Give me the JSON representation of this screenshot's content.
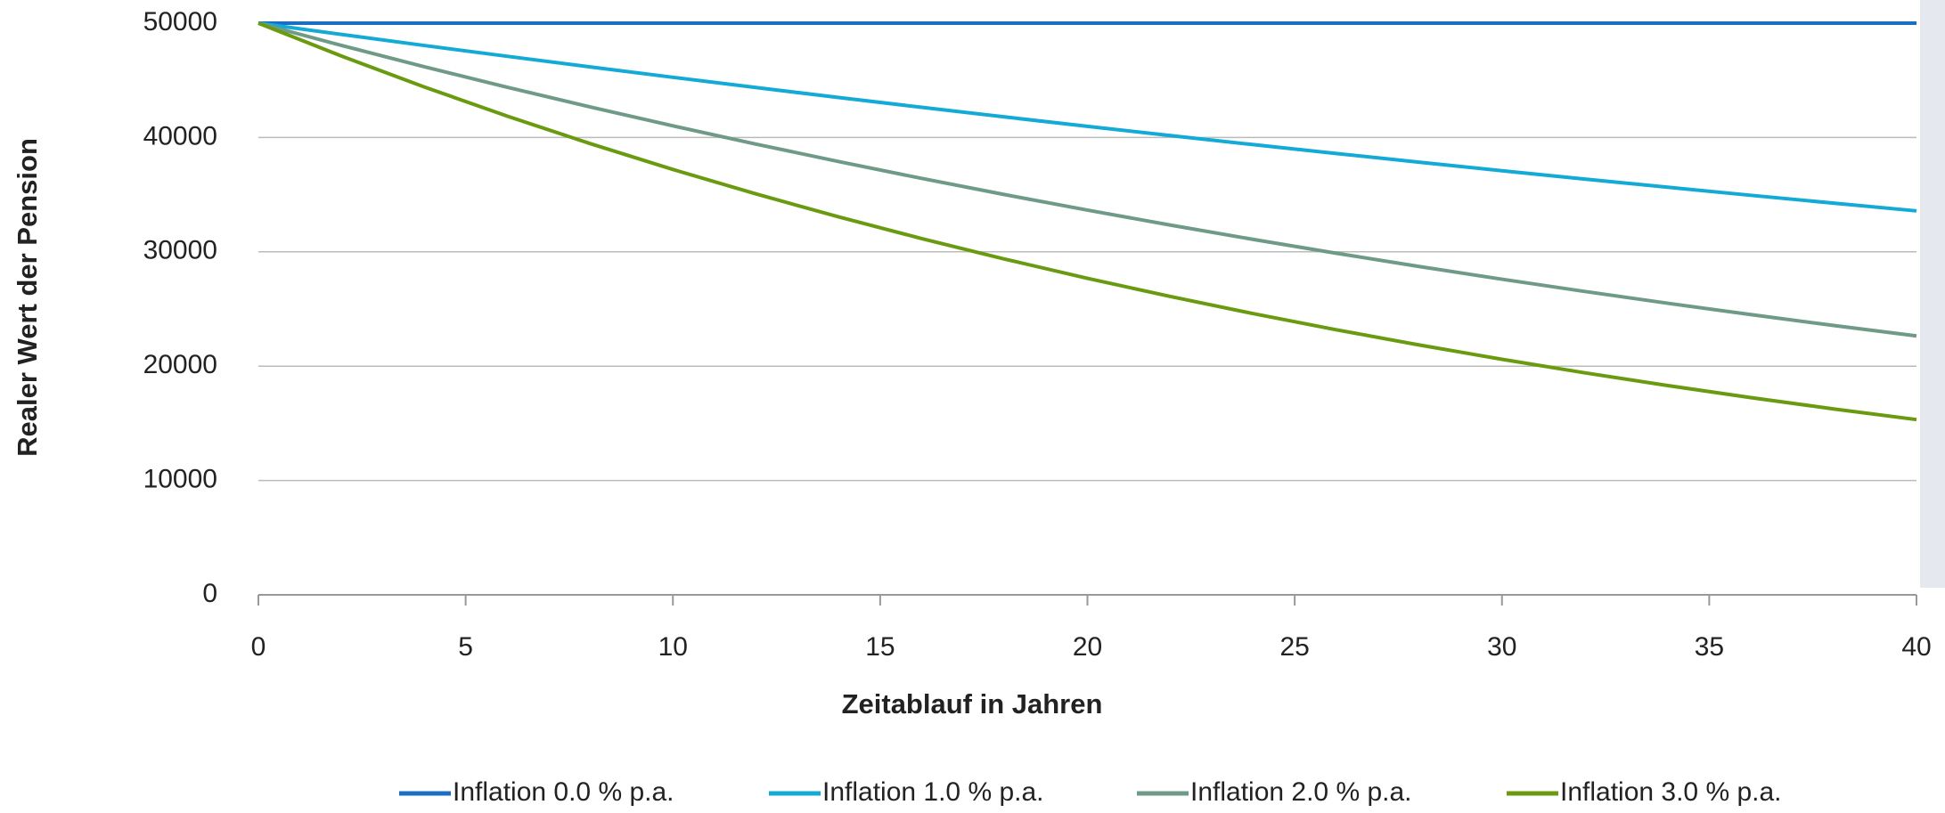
{
  "chart_data": {
    "type": "line",
    "xlabel": "Zeitablauf in Jahren",
    "ylabel": "Realer Wert der Pension",
    "x": [
      0,
      2,
      4,
      6,
      8,
      10,
      12,
      14,
      16,
      18,
      20,
      22,
      24,
      26,
      28,
      30,
      32,
      34,
      36,
      38,
      40
    ],
    "series": [
      {
        "name": "Inflation 0.0 % p.a.",
        "color": "#1a6fc4",
        "values": [
          50000,
          50000,
          50000,
          50000,
          50000,
          50000,
          50000,
          50000,
          50000,
          50000,
          50000,
          50000,
          50000,
          50000,
          50000,
          50000,
          50000,
          50000,
          50000,
          50000,
          50000
        ]
      },
      {
        "name": "Inflation 1.0 % p.a.",
        "color": "#14aad6",
        "values": [
          50000,
          49015,
          48049,
          47103,
          46174,
          45264,
          44372,
          43497,
          42640,
          41800,
          40976,
          40169,
          39377,
          38601,
          37840,
          37095,
          36364,
          35647,
          34945,
          34256,
          33582
        ]
      },
      {
        "name": "Inflation 2.0 % p.a.",
        "color": "#6f9a87",
        "values": [
          50000,
          48058,
          46192,
          44399,
          42675,
          41017,
          39425,
          37894,
          36422,
          35008,
          33648,
          32342,
          31086,
          29879,
          28719,
          27604,
          26532,
          25501,
          24511,
          23559,
          22645
        ]
      },
      {
        "name": "Inflation 3.0 % p.a.",
        "color": "#6a9a10",
        "values": [
          50000,
          47130,
          44424,
          41874,
          39471,
          37205,
          35069,
          33056,
          31158,
          29370,
          27684,
          26095,
          24597,
          23185,
          21854,
          20600,
          19417,
          18302,
          17252,
          16261,
          15328
        ]
      }
    ],
    "xlim": [
      0,
      40
    ],
    "xticks": [
      0,
      5,
      10,
      15,
      20,
      25,
      30,
      35,
      40
    ],
    "ylim": [
      0,
      50000
    ],
    "yticks": [
      0,
      10000,
      20000,
      30000,
      40000,
      50000
    ],
    "grid": true,
    "legend": "bottom"
  }
}
